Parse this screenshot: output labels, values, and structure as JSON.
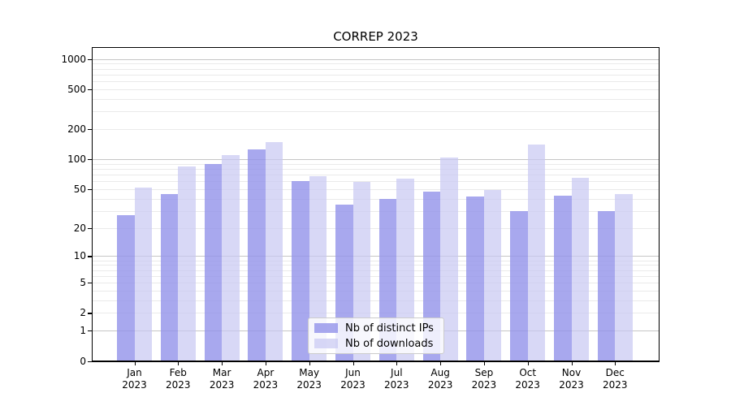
{
  "title": "CORREP 2023",
  "chart_data": {
    "type": "bar",
    "title": "CORREP 2023",
    "categories": [
      "Jan 2023",
      "Feb 2023",
      "Mar 2023",
      "Apr 2023",
      "May 2023",
      "Jun 2023",
      "Jul 2023",
      "Aug 2023",
      "Sep 2023",
      "Oct 2023",
      "Nov 2023",
      "Dec 2023"
    ],
    "series": [
      {
        "name": "Nb of distinct IPs",
        "color": "#a9a9ee",
        "fill": "rgba(146,146,234,0.8)",
        "values": [
          27,
          45,
          90,
          125,
          60,
          35,
          40,
          47,
          42,
          30,
          43,
          30
        ]
      },
      {
        "name": "Nb of downloads",
        "color": "#d8d8f6",
        "fill": "rgba(199,199,242,0.7)",
        "values": [
          52,
          85,
          110,
          150,
          68,
          59,
          64,
          105,
          49,
          140,
          65,
          45
        ]
      }
    ],
    "xlabel": "",
    "ylabel": "",
    "yscale": "symlog",
    "y_ticks": [
      0,
      1,
      2,
      5,
      10,
      20,
      50,
      100,
      200,
      500,
      1000
    ],
    "ylim": [
      0,
      1250
    ],
    "grid": "horizontal, major lines at powers of 10, minor lines at 2-9 per decade",
    "legend_position": "lower center"
  },
  "style": {
    "grid_major_color": "#c6c6c6",
    "grid_minor_color": "#eaeaea",
    "axis_color": "#000000",
    "text_color": "#000000",
    "background_color": "#ffffff"
  }
}
